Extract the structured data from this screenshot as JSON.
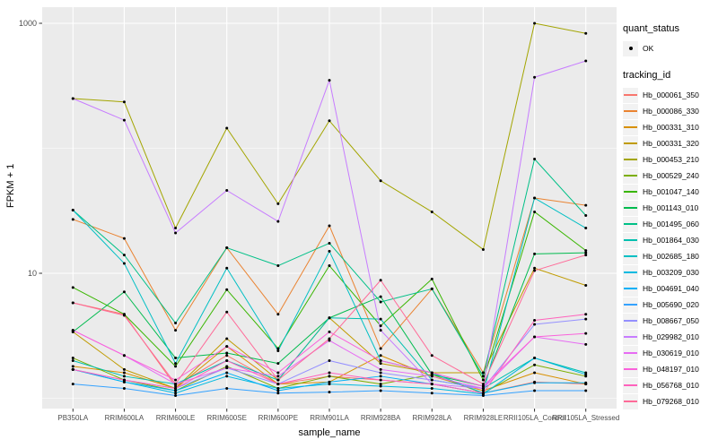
{
  "style": {
    "panel_bg": "#EBEBEB",
    "grid_color": "#FFFFFF",
    "point_color": "#000000",
    "axis_text_color": "#4D4D4D",
    "tick_color": "#333333",
    "legend_key_bg": "#F2F2F2"
  },
  "chart_data": {
    "type": "line",
    "title": "",
    "xlabel": "sample_name",
    "ylabel": "FPKM + 1",
    "y_scale": "log10",
    "y_tick_values": [
      10,
      1000
    ],
    "y_minor_values": [
      1,
      100
    ],
    "ylim": [
      1,
      1100
    ],
    "grid": true,
    "legend_position": "right",
    "marker": "black-point",
    "categories": [
      "PB350LA",
      "RRIM600LA",
      "RRIM600LE",
      "RRIM600SE",
      "RRIM600PE",
      "RRIM901LA",
      "RRIM928BA",
      "RRIM928LA",
      "RRIM928LE",
      "RRII105LA_Control",
      "RRII105LA_Stressed"
    ],
    "legend": {
      "quant_status_title": "quant_status",
      "quant_status_items": [
        "OK"
      ],
      "tracking_title": "tracking_id"
    },
    "series": [
      {
        "name": "Hb_000061_350",
        "color": "#F8766D",
        "values": [
          5.8,
          4.7,
          1.25,
          2.2,
          1.3,
          1.5,
          1.4,
          1.3,
          1.1,
          1.35,
          1.3
        ]
      },
      {
        "name": "Hb_000086_330",
        "color": "#EA8331",
        "values": [
          27,
          19,
          3.5,
          16,
          4.7,
          24,
          2.5,
          7.5,
          1.6,
          40,
          35
        ]
      },
      {
        "name": "Hb_000331_310",
        "color": "#D89000",
        "values": [
          1.8,
          1.6,
          1.2,
          2.6,
          1.3,
          1.35,
          2.2,
          1.5,
          1.15,
          1.6,
          1.3
        ]
      },
      {
        "name": "Hb_000331_320",
        "color": "#C09B00",
        "values": [
          3.4,
          1.7,
          1.2,
          3.0,
          1.4,
          4.4,
          1.9,
          1.6,
          1.6,
          11,
          8
        ]
      },
      {
        "name": "Hb_000453_210",
        "color": "#A3A500",
        "values": [
          250,
          235,
          23,
          145,
          36,
          166,
          55,
          31,
          15.5,
          1000,
          830
        ]
      },
      {
        "name": "Hb_000529_240",
        "color": "#7CAE00",
        "values": [
          2.1,
          1.4,
          1.15,
          1.8,
          1.2,
          1.5,
          1.3,
          1.55,
          1.1,
          1.85,
          1.5
        ]
      },
      {
        "name": "Hb_001047_140",
        "color": "#39B600",
        "values": [
          7.7,
          4.7,
          1.8,
          7.4,
          2.5,
          11.5,
          3.8,
          9.0,
          1.4,
          31,
          15.2
        ]
      },
      {
        "name": "Hb_001143_010",
        "color": "#00BB4E",
        "values": [
          3.4,
          7.1,
          2.1,
          2.3,
          1.9,
          4.4,
          6.5,
          1.55,
          1.25,
          14.3,
          14.6
        ]
      },
      {
        "name": "Hb_001495_060",
        "color": "#00C087",
        "values": [
          32,
          14,
          4.0,
          16,
          11.5,
          17.4,
          5.9,
          7.5,
          1.5,
          82,
          29
        ]
      },
      {
        "name": "Hb_001864_030",
        "color": "#00C0AF",
        "values": [
          2.0,
          1.5,
          1.3,
          2.0,
          1.4,
          4.4,
          4.3,
          1.4,
          1.2,
          2.1,
          1.6
        ]
      },
      {
        "name": "Hb_002685_180",
        "color": "#00BFC4",
        "values": [
          32,
          12,
          1.9,
          11,
          2.4,
          15,
          2.0,
          1.6,
          1.1,
          40,
          23
        ]
      },
      {
        "name": "Hb_003209_030",
        "color": "#00BAE0",
        "values": [
          1.7,
          1.35,
          1.1,
          1.5,
          1.2,
          1.3,
          1.25,
          1.2,
          1.08,
          2.1,
          1.55
        ]
      },
      {
        "name": "Hb_004691_040",
        "color": "#00B0F6",
        "values": [
          1.7,
          1.35,
          1.15,
          1.6,
          1.15,
          1.35,
          1.5,
          1.3,
          1.1,
          1.33,
          1.33
        ]
      },
      {
        "name": "Hb_005690_020",
        "color": "#35A2FF",
        "values": [
          1.3,
          1.2,
          1.05,
          1.2,
          1.1,
          1.12,
          1.15,
          1.1,
          1.05,
          1.15,
          1.15
        ]
      },
      {
        "name": "Hb_008667_050",
        "color": "#9590FF",
        "values": [
          1.7,
          1.4,
          1.2,
          1.75,
          1.3,
          2.0,
          1.6,
          1.4,
          1.2,
          3.9,
          4.3
        ]
      },
      {
        "name": "Hb_029982_010",
        "color": "#C77CFF",
        "values": [
          250,
          168,
          21,
          46,
          26,
          350,
          3.5,
          1.3,
          1.2,
          370,
          500
        ]
      },
      {
        "name": "Hb_030619_010",
        "color": "#E76BF3",
        "values": [
          3.5,
          2.2,
          1.3,
          1.75,
          1.5,
          2.9,
          1.7,
          1.5,
          1.2,
          3.1,
          2.7
        ]
      },
      {
        "name": "Hb_048197_010",
        "color": "#FA62DB",
        "values": [
          3.5,
          2.2,
          1.4,
          2.6,
          1.6,
          3.4,
          2.0,
          1.6,
          1.25,
          3.1,
          3.3
        ]
      },
      {
        "name": "Hb_056768_010",
        "color": "#FF62BC",
        "values": [
          1.7,
          1.4,
          1.2,
          2.0,
          1.3,
          1.6,
          1.4,
          1.3,
          1.1,
          4.2,
          4.7
        ]
      },
      {
        "name": "Hb_079268_010",
        "color": "#FF6A98",
        "values": [
          5.8,
          4.6,
          1.3,
          4.9,
          1.4,
          3.0,
          8.8,
          2.2,
          1.3,
          10.5,
          14
        ]
      }
    ]
  }
}
